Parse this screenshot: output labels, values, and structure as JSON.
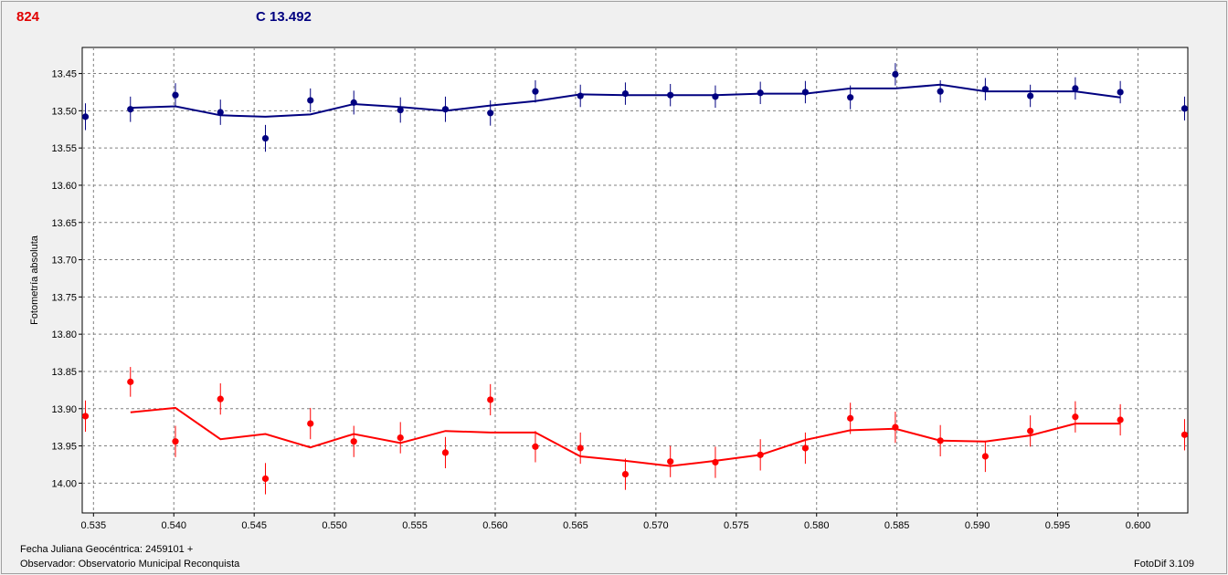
{
  "header": {
    "star_id": "824",
    "comparison": "C 13.492"
  },
  "footer": {
    "jd": "Fecha Juliana Geocéntrica: 2459101 +",
    "observer": "Observador: Observatorio Municipal Reconquista",
    "version": "FotoDif 3.109"
  },
  "colors": {
    "comparison": "#000080",
    "target": "#ff0000",
    "grid": "#808080",
    "axis": "#000000"
  },
  "chart_data": {
    "type": "scatter",
    "xlim": [
      0.5343,
      0.6031
    ],
    "ylim": [
      14.04,
      13.415
    ],
    "y_inverted": true,
    "ylabel": "Fotometría absoluta",
    "xlabel": "",
    "grid": true,
    "x_ticks": [
      0.535,
      0.54,
      0.545,
      0.55,
      0.555,
      0.56,
      0.565,
      0.57,
      0.575,
      0.58,
      0.585,
      0.59,
      0.595,
      0.6
    ],
    "x_tick_labels": [
      "0.535",
      "0.540",
      "0.545",
      "0.550",
      "0.555",
      "0.560",
      "0.565",
      "0.570",
      "0.575",
      "0.580",
      "0.585",
      "0.590",
      "0.595",
      "0.600"
    ],
    "y_ticks": [
      13.45,
      13.5,
      13.55,
      13.6,
      13.65,
      13.7,
      13.75,
      13.8,
      13.85,
      13.9,
      13.95,
      14.0
    ],
    "y_tick_labels": [
      "13.45",
      "13.50",
      "13.55",
      "13.60",
      "13.65",
      "13.70",
      "13.75",
      "13.80",
      "13.85",
      "13.90",
      "13.95",
      "14.00"
    ],
    "series": [
      {
        "key": "comparison",
        "x": [
          0.5345,
          0.5373,
          0.5401,
          0.5429,
          0.5457,
          0.5485,
          0.5512,
          0.5541,
          0.5569,
          0.5597,
          0.5625,
          0.5653,
          0.5681,
          0.5709,
          0.5737,
          0.5765,
          0.5793,
          0.5821,
          0.5849,
          0.5877,
          0.5905,
          0.5933,
          0.5961,
          0.5989,
          0.6029
        ],
        "y": [
          13.508,
          13.498,
          13.479,
          13.502,
          13.537,
          13.486,
          13.489,
          13.499,
          13.498,
          13.503,
          13.474,
          13.48,
          13.477,
          13.479,
          13.481,
          13.476,
          13.475,
          13.482,
          13.451,
          13.474,
          13.471,
          13.48,
          13.47,
          13.475,
          13.497
        ],
        "err": [
          0.018,
          0.017,
          0.016,
          0.017,
          0.018,
          0.016,
          0.016,
          0.017,
          0.017,
          0.017,
          0.015,
          0.015,
          0.015,
          0.015,
          0.015,
          0.015,
          0.015,
          0.016,
          0.015,
          0.015,
          0.015,
          0.015,
          0.015,
          0.015,
          0.016
        ],
        "fit_x": [
          0.5373,
          0.5401,
          0.5429,
          0.5457,
          0.5485,
          0.5512,
          0.5541,
          0.5569,
          0.5597,
          0.5625,
          0.5653,
          0.5681,
          0.5709,
          0.5737,
          0.5765,
          0.5793,
          0.5821,
          0.5849,
          0.5877,
          0.5905,
          0.5933,
          0.5961,
          0.5989
        ],
        "fit_y": [
          13.496,
          13.494,
          13.506,
          13.508,
          13.505,
          13.491,
          13.495,
          13.5,
          13.493,
          13.487,
          13.478,
          13.479,
          13.479,
          13.479,
          13.477,
          13.477,
          13.47,
          13.47,
          13.465,
          13.474,
          13.474,
          13.474,
          13.482
        ]
      },
      {
        "key": "target",
        "x": [
          0.5345,
          0.5373,
          0.5401,
          0.5429,
          0.5457,
          0.5485,
          0.5512,
          0.5541,
          0.5569,
          0.5597,
          0.5625,
          0.5653,
          0.5681,
          0.5709,
          0.5737,
          0.5765,
          0.5793,
          0.5821,
          0.5849,
          0.5877,
          0.5905,
          0.5933,
          0.5961,
          0.5989,
          0.6029
        ],
        "y": [
          13.91,
          13.864,
          13.944,
          13.887,
          13.994,
          13.92,
          13.944,
          13.939,
          13.959,
          13.888,
          13.951,
          13.953,
          13.988,
          13.971,
          13.972,
          13.962,
          13.953,
          13.913,
          13.925,
          13.943,
          13.964,
          13.93,
          13.911,
          13.915,
          13.935
        ],
        "err": [
          0.021,
          0.02,
          0.021,
          0.021,
          0.021,
          0.021,
          0.021,
          0.021,
          0.021,
          0.021,
          0.021,
          0.021,
          0.021,
          0.021,
          0.021,
          0.021,
          0.021,
          0.021,
          0.021,
          0.021,
          0.021,
          0.021,
          0.021,
          0.021,
          0.021
        ],
        "fit_x": [
          0.5373,
          0.5401,
          0.5429,
          0.5457,
          0.5485,
          0.5512,
          0.5541,
          0.5569,
          0.5597,
          0.5625,
          0.5653,
          0.5681,
          0.5709,
          0.5737,
          0.5765,
          0.5793,
          0.5821,
          0.5849,
          0.5877,
          0.5905,
          0.5933,
          0.5961,
          0.5989
        ],
        "fit_y": [
          13.905,
          13.899,
          13.941,
          13.934,
          13.952,
          13.934,
          13.946,
          13.93,
          13.932,
          13.932,
          13.964,
          13.97,
          13.977,
          13.97,
          13.962,
          13.942,
          13.929,
          13.927,
          13.943,
          13.944,
          13.936,
          13.92,
          13.92
        ]
      }
    ]
  }
}
